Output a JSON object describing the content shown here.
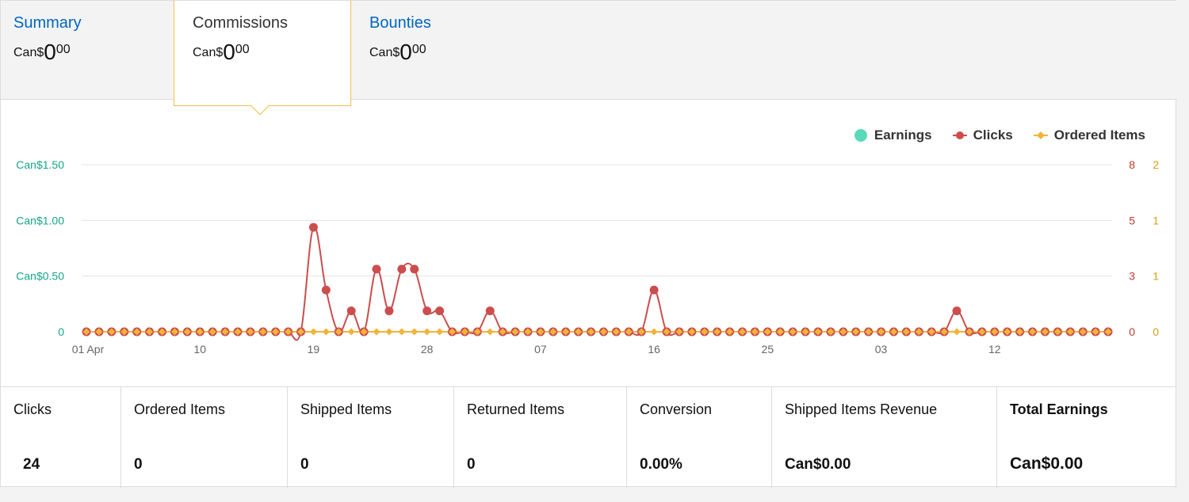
{
  "tabs": [
    {
      "title": "Summary",
      "currency": "Can$",
      "whole": "0",
      "cents": "00"
    },
    {
      "title": "Commissions",
      "currency": "Can$",
      "whole": "0",
      "cents": "00"
    },
    {
      "title": "Bounties",
      "currency": "Can$",
      "whole": "0",
      "cents": "00"
    }
  ],
  "legend": [
    {
      "label": "Earnings",
      "color": "#5ad9b8",
      "marker": "circle"
    },
    {
      "label": "Clicks",
      "color": "#cc4d4d",
      "marker": "line-dot"
    },
    {
      "label": "Ordered Items",
      "color": "#f0b43a",
      "marker": "line-diamond"
    }
  ],
  "chart_data": {
    "type": "line",
    "x_tick_labels": [
      "01 Apr",
      "10",
      "19",
      "28",
      "07",
      "16",
      "25",
      "03",
      "12"
    ],
    "x_tick_index": [
      0,
      9,
      18,
      27,
      36,
      45,
      54,
      63,
      72
    ],
    "left_axis": {
      "labels": [
        "Can$1.50",
        "Can$1.00",
        "Can$0.50",
        "0"
      ],
      "values": [
        1.5,
        1.0,
        0.5,
        0
      ],
      "color": "#17a589"
    },
    "right_axis_clicks": {
      "labels": [
        "8",
        "5",
        "3",
        "0"
      ],
      "color": "#c0392b"
    },
    "right_axis_items": {
      "labels": [
        "2",
        "1",
        "1",
        "0"
      ],
      "color": "#d4a017"
    },
    "ylim_clicks": [
      0,
      8
    ],
    "series": [
      {
        "name": "Earnings",
        "color": "#5ad9b8",
        "values": "all zero"
      },
      {
        "name": "Clicks",
        "color": "#cc4d4d",
        "values": [
          0,
          0,
          0,
          0,
          0,
          0,
          0,
          0,
          0,
          0,
          0,
          0,
          0,
          0,
          0,
          0,
          0,
          0,
          5,
          2,
          0,
          1,
          0,
          3,
          1,
          3,
          3,
          1,
          1,
          0,
          0,
          0,
          1,
          0,
          0,
          0,
          0,
          0,
          0,
          0,
          0,
          0,
          0,
          0,
          0,
          2,
          0,
          0,
          0,
          0,
          0,
          0,
          0,
          0,
          0,
          0,
          0,
          0,
          0,
          0,
          0,
          0,
          0,
          0,
          0,
          0,
          0,
          0,
          0,
          1,
          0,
          0,
          0,
          0,
          0,
          0,
          0,
          0,
          0,
          0,
          0,
          0
        ]
      },
      {
        "name": "Ordered Items",
        "color": "#f0b43a",
        "values": [
          0,
          0,
          0,
          0,
          0,
          0,
          0,
          0,
          0,
          0,
          0,
          0,
          0,
          0,
          0,
          0,
          0,
          0,
          0,
          0,
          0,
          0,
          0,
          0,
          0,
          0,
          0,
          0,
          0,
          0,
          0,
          0,
          0,
          0,
          0,
          0,
          0,
          0,
          0,
          0,
          0,
          0,
          0,
          0,
          0,
          0,
          0,
          0,
          0,
          0,
          0,
          0,
          0,
          0,
          0,
          0,
          0,
          0,
          0,
          0,
          0,
          0,
          0,
          0,
          0,
          0,
          0,
          0,
          0,
          0,
          0,
          0,
          0,
          0,
          0,
          0,
          0,
          0,
          0,
          0,
          0,
          0
        ]
      }
    ],
    "grid": true,
    "legend_position": "top-right"
  },
  "stats": [
    {
      "label": "Clicks",
      "value": "24"
    },
    {
      "label": "Ordered Items",
      "value": "0"
    },
    {
      "label": "Shipped Items",
      "value": "0"
    },
    {
      "label": "Returned Items",
      "value": "0"
    },
    {
      "label": "Conversion",
      "value": "0.00%"
    },
    {
      "label": "Shipped Items Revenue",
      "value": "Can$0.00"
    },
    {
      "label": "Total Earnings",
      "value": "Can$0.00"
    }
  ]
}
